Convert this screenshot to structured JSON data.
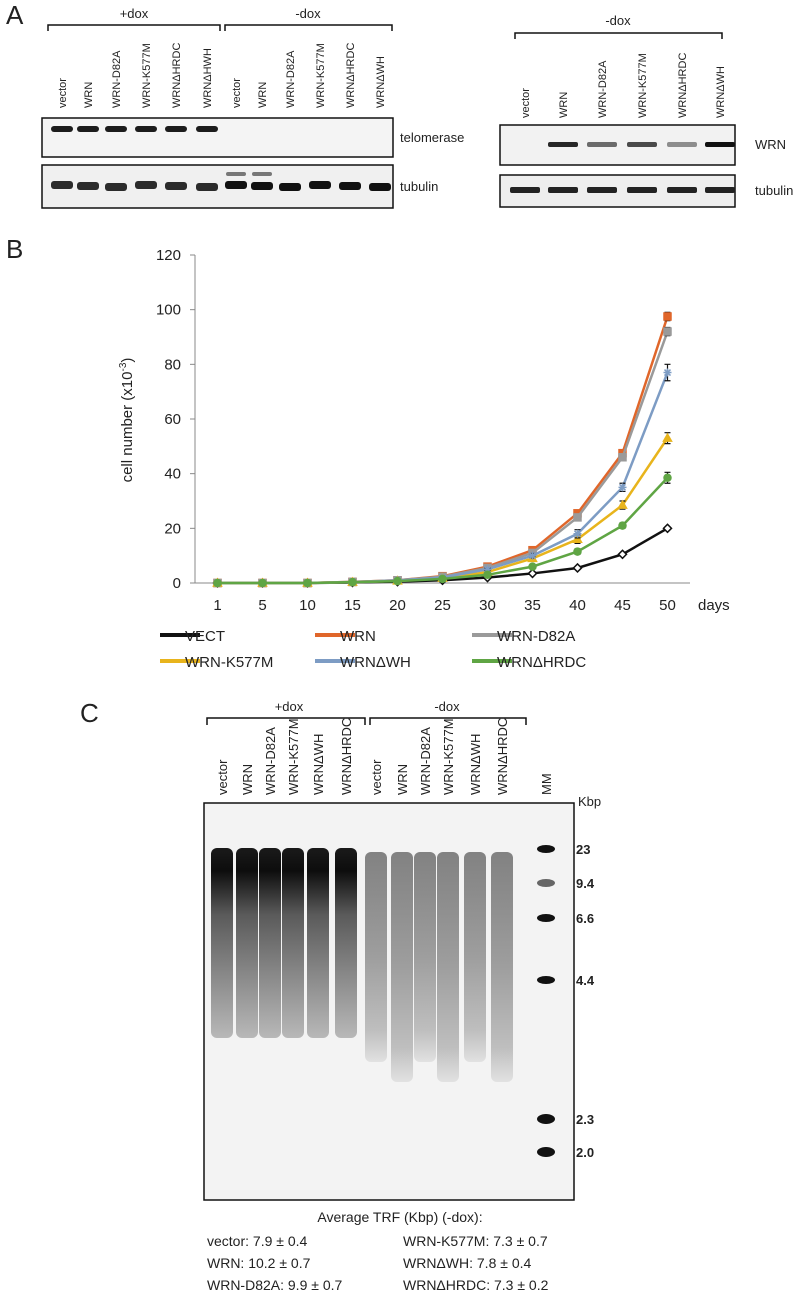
{
  "panel_labels": [
    "A",
    "B",
    "C"
  ],
  "panel_a": {
    "left_blot": {
      "groups": [
        "+dox",
        "-dox"
      ],
      "lanes": [
        [
          "vector",
          "WRN",
          "WRN-D82A",
          "WRN-K577M",
          "WRNΔHRDC",
          "WRNΔHWH"
        ],
        [
          "vector",
          "WRN",
          "WRN-D82A",
          "WRN-K577M",
          "WRNΔHRDC",
          "WRNΔWH"
        ]
      ],
      "rows": [
        "telomerase",
        "tubulin"
      ]
    },
    "right_blot": {
      "group": "-dox",
      "lanes": [
        "vector",
        "WRN",
        "WRN-D82A",
        "WRN-K577M",
        "WRNΔHRDC",
        "WRNΔWH"
      ],
      "rows": [
        "WRN",
        "tubulin"
      ]
    }
  },
  "chart_data": {
    "type": "line",
    "ylabel": "cell number (x10",
    "ylabel_exponent": "-3",
    "ylabel_end": ")",
    "xlabel": "days",
    "categories": [
      "1",
      "5",
      "10",
      "15",
      "20",
      "25",
      "30",
      "35",
      "40",
      "45",
      "50"
    ],
    "ylim": [
      0,
      120
    ],
    "yticks": [
      0,
      20,
      40,
      60,
      80,
      100,
      120
    ],
    "grid": false,
    "series": [
      {
        "name": "VECT",
        "color": "#111111",
        "marker": "diamond",
        "values": [
          0,
          0,
          0,
          0.2,
          0.5,
          1,
          2,
          3.5,
          5.5,
          10.5,
          20
        ],
        "errors": [
          0,
          0,
          0,
          0,
          0,
          0,
          0,
          0,
          0,
          0,
          0.5
        ]
      },
      {
        "name": "WRN",
        "color": "#e0662a",
        "marker": "square",
        "values": [
          0,
          0,
          0,
          0.4,
          1,
          2.5,
          6,
          12,
          25.5,
          47.5,
          97.5
        ],
        "errors": [
          0,
          0,
          0,
          0,
          0,
          0,
          0.5,
          0.8,
          1,
          1,
          1.5
        ]
      },
      {
        "name": "WRN-D82A",
        "color": "#9a9a9a",
        "marker": "square",
        "values": [
          0,
          0,
          0,
          0.4,
          1,
          2.3,
          5.5,
          11,
          24,
          46,
          92
        ],
        "errors": [
          0,
          0,
          0,
          0,
          0,
          0,
          0.5,
          0.8,
          1,
          1,
          1.5
        ]
      },
      {
        "name": "WRN-K577M",
        "color": "#e8b41c",
        "marker": "triangle",
        "values": [
          0,
          0,
          0,
          0.3,
          0.8,
          1.8,
          4,
          9,
          16,
          28.5,
          53
        ],
        "errors": [
          0,
          0,
          0,
          0,
          0,
          0,
          0.5,
          0.8,
          1.5,
          1.5,
          2
        ]
      },
      {
        "name": "WRNΔWH",
        "color": "#7d9cc4",
        "marker": "star",
        "values": [
          0,
          0,
          0,
          0.3,
          0.9,
          2,
          5,
          10,
          18,
          35,
          77
        ],
        "errors": [
          0,
          0,
          0,
          0,
          0,
          0,
          0.5,
          0.8,
          1.5,
          1.5,
          3
        ]
      },
      {
        "name": "WRNΔHRDC",
        "color": "#5fa544",
        "marker": "circle",
        "values": [
          0,
          0,
          0,
          0.3,
          0.7,
          1.5,
          3,
          6,
          11.5,
          21,
          38.5
        ],
        "errors": [
          0,
          0,
          0,
          0,
          0,
          0,
          0.5,
          0.5,
          1,
          1,
          2
        ]
      }
    ]
  },
  "panel_c": {
    "groups": [
      "+dox",
      "-dox"
    ],
    "lanes": [
      [
        "vector",
        "WRN",
        "WRN-D82A",
        "WRN-K577M",
        "WRNΔWH",
        "WRNΔHRDC"
      ],
      [
        "vector",
        "WRN",
        "WRN-D82A",
        "WRN-K577M",
        "WRNΔWH",
        "WRNΔHRDC"
      ]
    ],
    "marker_lane": "MM",
    "marker_unit": "Kbp",
    "marker_sizes": [
      "23",
      "9.4",
      "6.6",
      "4.4",
      "2.3",
      "2.0"
    ],
    "summary_title": "Average TRF (Kbp) (-dox):",
    "summary": [
      [
        "vector: 7.9 ± 0.4",
        "WRN-K577M: 7.3 ± 0.7"
      ],
      [
        "WRN: 10.2 ± 0.7",
        "WRNΔWH: 7.8 ± 0.4"
      ],
      [
        "WRN-D82A: 9.9 ± 0.7",
        "WRNΔHRDC: 7.3 ± 0.2"
      ]
    ]
  }
}
